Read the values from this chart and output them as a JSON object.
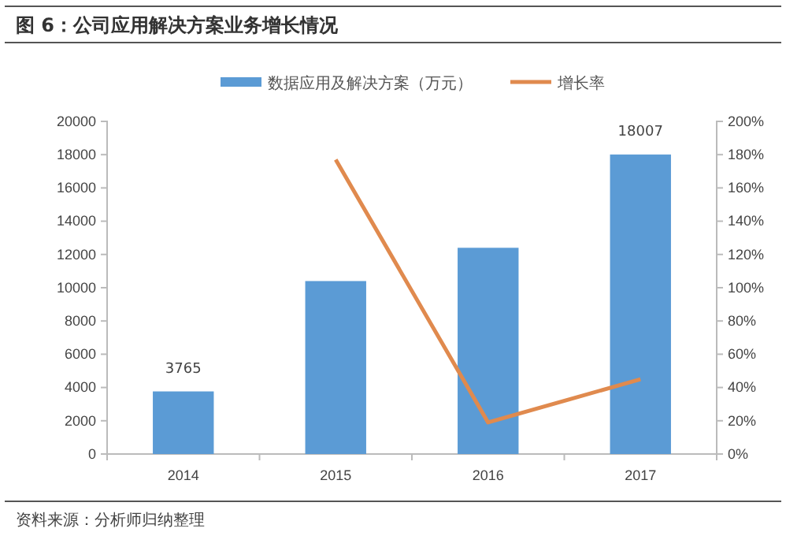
{
  "chart_data": {
    "type": "bar",
    "title": "图 6：公司应用解决方案业务增长情况",
    "categories": [
      "2014",
      "2015",
      "2016",
      "2017"
    ],
    "series": [
      {
        "name": "数据应用及解决方案（万元）",
        "color": "#5b9bd5",
        "values": [
          3765,
          10400,
          12400,
          18007
        ],
        "value_labels": [
          "3765",
          null,
          null,
          "18007"
        ]
      },
      {
        "name": "增长率",
        "type": "line",
        "axis": "y2",
        "color": "#e08a4e",
        "values": [
          null,
          177,
          19,
          45
        ]
      }
    ],
    "ylim": [
      0,
      20000
    ],
    "yticks": [
      0,
      2000,
      4000,
      6000,
      8000,
      10000,
      12000,
      14000,
      16000,
      18000,
      20000
    ],
    "y2lim": [
      0,
      200
    ],
    "y2ticks": [
      {
        "value": 0,
        "label": "0%"
      },
      {
        "value": 20,
        "label": "20%"
      },
      {
        "value": 40,
        "label": "40%"
      },
      {
        "value": 60,
        "label": "60%"
      },
      {
        "value": 80,
        "label": "80%"
      },
      {
        "value": 100,
        "label": "100%"
      },
      {
        "value": 120,
        "label": "120%"
      },
      {
        "value": 140,
        "label": "140%"
      },
      {
        "value": 160,
        "label": "160%"
      },
      {
        "value": 180,
        "label": "180%"
      },
      {
        "value": 200,
        "label": "200%"
      }
    ],
    "legend": "top",
    "grid": false,
    "annotations": [
      "资料来源：分析师归纳整理"
    ]
  }
}
